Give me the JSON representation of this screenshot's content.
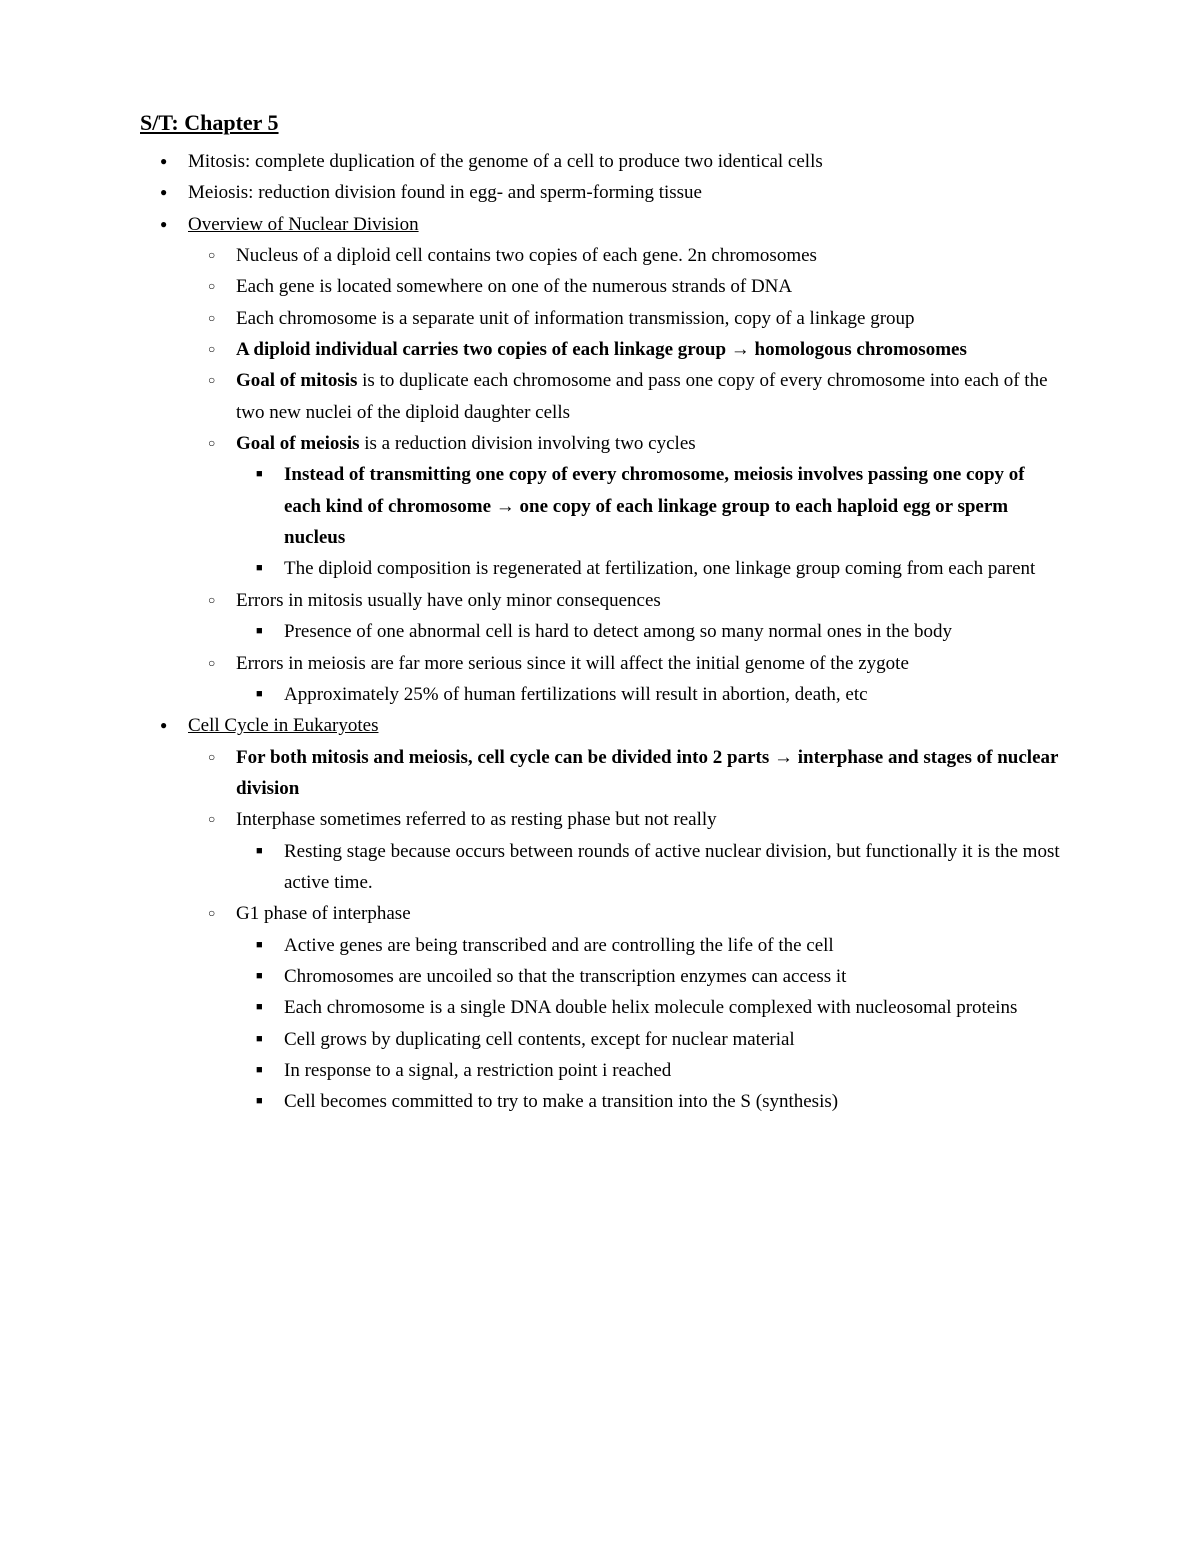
{
  "title": "S/T: Chapter 5",
  "items": [
    {
      "text": "Mitosis: complete duplication of the genome of a cell to produce two identical cells"
    },
    {
      "text": "Meiosis: reduction division found in egg- and sperm-forming tissue"
    },
    {
      "html": "<span class=\"u\">Overview of Nuclear Division</span>",
      "children": [
        {
          "text": "Nucleus of a diploid cell contains two copies of each gene. 2n chromosomes"
        },
        {
          "text": "Each gene is located somewhere on one of the numerous strands of DNA"
        },
        {
          "text": "Each chromosome is a separate unit of information transmission, copy of a linkage group"
        },
        {
          "html": "<span class=\"b\">A diploid individual carries two copies of each linkage group → homologous chromosomes</span>"
        },
        {
          "html": "<span class=\"b\">Goal of mitosis</span> is to duplicate each chromosome and pass one copy of every chromosome into each of the two new nuclei of the diploid daughter cells"
        },
        {
          "html": "<span class=\"b\">Goal of meiosis</span> is a reduction division involving two cycles",
          "children": [
            {
              "html": "<span class=\"b\">Instead of transmitting one copy of every chromosome, meiosis involves passing one copy of each kind of chromosome → one copy of each linkage group to each haploid egg or sperm nucleus</span>"
            },
            {
              "text": "The diploid composition is regenerated at fertilization, one linkage group coming from each parent"
            }
          ]
        },
        {
          "text": "Errors in mitosis usually have only minor consequences",
          "children": [
            {
              "text": "Presence of one abnormal cell is hard to detect among so many normal ones in the body"
            }
          ]
        },
        {
          "text": "Errors in meiosis are far more serious since it will affect the initial genome of the zygote",
          "children": [
            {
              "text": "Approximately 25% of human fertilizations will result in abortion, death, etc"
            }
          ]
        }
      ]
    },
    {
      "html": "<span class=\"u\">Cell Cycle in Eukaryotes</span>",
      "children": [
        {
          "html": "<span class=\"b\">For both mitosis and meiosis, cell cycle can be divided into 2 parts → interphase and stages of nuclear division</span>"
        },
        {
          "text": "Interphase sometimes referred to as resting phase but not really",
          "children": [
            {
              "text": "Resting stage because occurs between rounds of active nuclear division, but functionally it is the most active time."
            }
          ]
        },
        {
          "text": "G1 phase of interphase",
          "children": [
            {
              "text": "Active genes are being transcribed and are controlling the life of the cell"
            },
            {
              "text": "Chromosomes are uncoiled so that the transcription enzymes can access it"
            },
            {
              "text": "Each chromosome is a single DNA double helix molecule complexed with nucleosomal proteins"
            },
            {
              "text": "Cell grows by duplicating cell contents, except for nuclear material"
            },
            {
              "text": "In response to a signal, a restriction point i reached"
            },
            {
              "text": "Cell becomes committed to try to make a transition into the S (synthesis)"
            }
          ]
        }
      ]
    }
  ]
}
